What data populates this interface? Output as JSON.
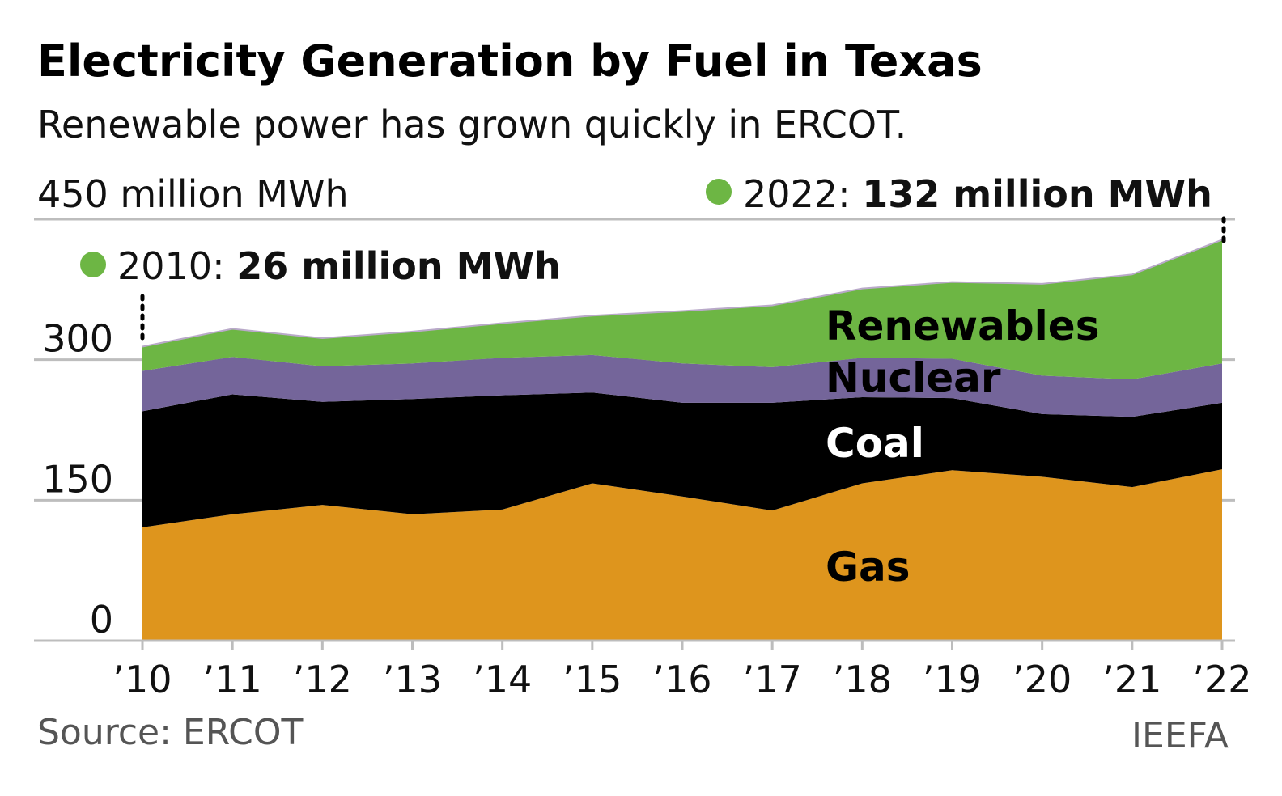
{
  "chart_data": {
    "type": "area",
    "stacked": true,
    "title": "Electricity Generation by Fuel in Texas",
    "subtitle": "Renewable power has grown quickly in ERCOT.",
    "ylabel": "450 million MWh",
    "ylim": [
      0,
      450
    ],
    "yticks": [
      "0",
      "150",
      "300"
    ],
    "grid": true,
    "categories": [
      "’10",
      "’11",
      "’12",
      "’13",
      "’14",
      "’15",
      "’16",
      "’17",
      "’18",
      "’19",
      "’20",
      "’21",
      "’22"
    ],
    "series": [
      {
        "name": "Gas",
        "color": "#DE951D",
        "label_color": "#000000",
        "values": [
          121,
          135,
          145,
          135,
          140,
          168,
          154,
          139,
          168,
          182,
          175,
          164,
          183
        ]
      },
      {
        "name": "Coal",
        "color": "#000000",
        "label_color": "#FFFFFF",
        "values": [
          124,
          128,
          110,
          123,
          122,
          97,
          100,
          115,
          92,
          77,
          67,
          75,
          71
        ]
      },
      {
        "name": "Nuclear",
        "color": "#74659A",
        "label_color": "#000000",
        "values": [
          43,
          40,
          38,
          38,
          40,
          40,
          42,
          38,
          42,
          42,
          41,
          40,
          42
        ]
      },
      {
        "name": "Renewables",
        "color": "#6DB644",
        "label_color": "#000000",
        "values": [
          26,
          30,
          30,
          34,
          37,
          42,
          56,
          66,
          74,
          82,
          98,
          112,
          132
        ]
      }
    ],
    "annotations": [
      {
        "year": "2010: ",
        "value": "26 million MWh",
        "color": "#6DB644"
      },
      {
        "year": "2022: ",
        "value": "132 million MWh",
        "color": "#6DB644"
      }
    ],
    "source": "Source: ERCOT",
    "credit": "IEEFA"
  }
}
